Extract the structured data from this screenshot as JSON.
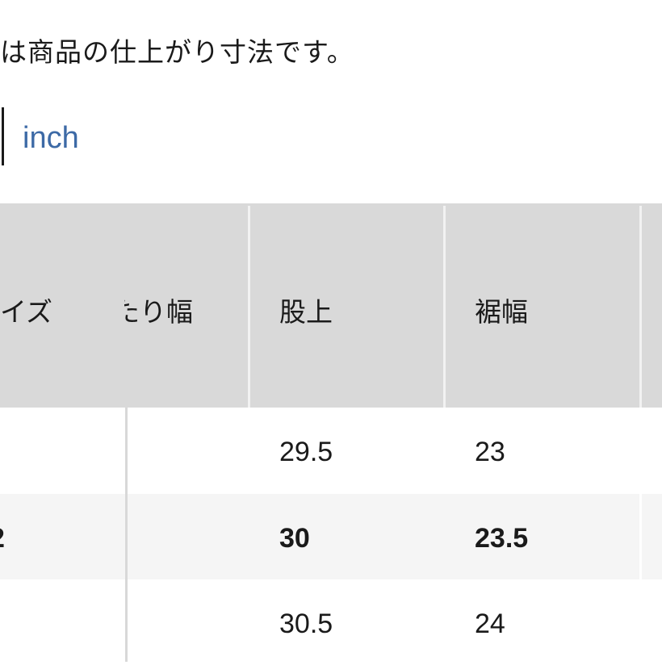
{
  "note": "は商品の仕上がり寸法です。",
  "unit_toggle": {
    "inch_label": "inch"
  },
  "table": {
    "headers": [
      "イズ",
      "たり幅",
      "股上",
      "裾幅"
    ],
    "rows": [
      {
        "size": "",
        "rise": "29.5",
        "hem": "23",
        "highlighted": false
      },
      {
        "size": "2",
        "rise": "30",
        "hem": "23.5",
        "highlighted": true
      },
      {
        "size": "",
        "rise": "30.5",
        "hem": "24",
        "highlighted": false
      }
    ],
    "colors": {
      "header_bg": "#d9d9d9",
      "highlight_row_bg": "#f5f5f5",
      "link": "#3d6aa6"
    }
  }
}
